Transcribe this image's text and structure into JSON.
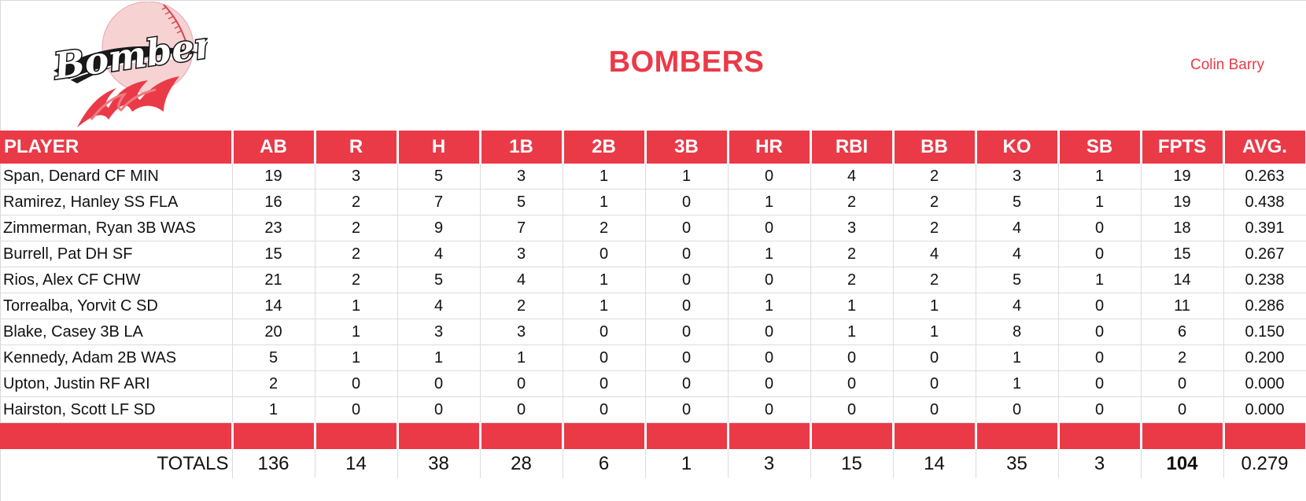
{
  "header": {
    "team_name": "BOMBERS",
    "manager": "Colin Barry",
    "logo_text": "Bombers"
  },
  "colors": {
    "accent": "#ea3a48",
    "header_text": "#ffffff",
    "grid": "#dcdcdc"
  },
  "table": {
    "columns": [
      "PLAYER",
      "AB",
      "R",
      "H",
      "1B",
      "2B",
      "3B",
      "HR",
      "RBI",
      "BB",
      "KO",
      "SB",
      "FPTS",
      "AVG."
    ],
    "rows": [
      [
        "Span, Denard CF MIN",
        "19",
        "3",
        "5",
        "3",
        "1",
        "1",
        "0",
        "4",
        "2",
        "3",
        "1",
        "19",
        "0.263"
      ],
      [
        "Ramirez, Hanley SS FLA",
        "16",
        "2",
        "7",
        "5",
        "1",
        "0",
        "1",
        "2",
        "2",
        "5",
        "1",
        "19",
        "0.438"
      ],
      [
        "Zimmerman, Ryan 3B WAS",
        "23",
        "2",
        "9",
        "7",
        "2",
        "0",
        "0",
        "3",
        "2",
        "4",
        "0",
        "18",
        "0.391"
      ],
      [
        "Burrell, Pat DH SF",
        "15",
        "2",
        "4",
        "3",
        "0",
        "0",
        "1",
        "2",
        "4",
        "4",
        "0",
        "15",
        "0.267"
      ],
      [
        "Rios, Alex CF CHW",
        "21",
        "2",
        "5",
        "4",
        "1",
        "0",
        "0",
        "2",
        "2",
        "5",
        "1",
        "14",
        "0.238"
      ],
      [
        "Torrealba, Yorvit C SD",
        "14",
        "1",
        "4",
        "2",
        "1",
        "0",
        "1",
        "1",
        "1",
        "4",
        "0",
        "11",
        "0.286"
      ],
      [
        "Blake, Casey 3B LA",
        "20",
        "1",
        "3",
        "3",
        "0",
        "0",
        "0",
        "1",
        "1",
        "8",
        "0",
        "6",
        "0.150"
      ],
      [
        "Kennedy, Adam 2B WAS",
        "5",
        "1",
        "1",
        "1",
        "0",
        "0",
        "0",
        "0",
        "0",
        "1",
        "0",
        "2",
        "0.200"
      ],
      [
        "Upton, Justin RF ARI",
        "2",
        "0",
        "0",
        "0",
        "0",
        "0",
        "0",
        "0",
        "0",
        "1",
        "0",
        "0",
        "0.000"
      ],
      [
        "Hairston, Scott LF SD",
        "1",
        "0",
        "0",
        "0",
        "0",
        "0",
        "0",
        "0",
        "0",
        "0",
        "0",
        "0",
        "0.000"
      ]
    ],
    "totals": [
      "TOTALS",
      "136",
      "14",
      "38",
      "28",
      "6",
      "1",
      "3",
      "15",
      "14",
      "35",
      "3",
      "104",
      "0.279"
    ]
  }
}
